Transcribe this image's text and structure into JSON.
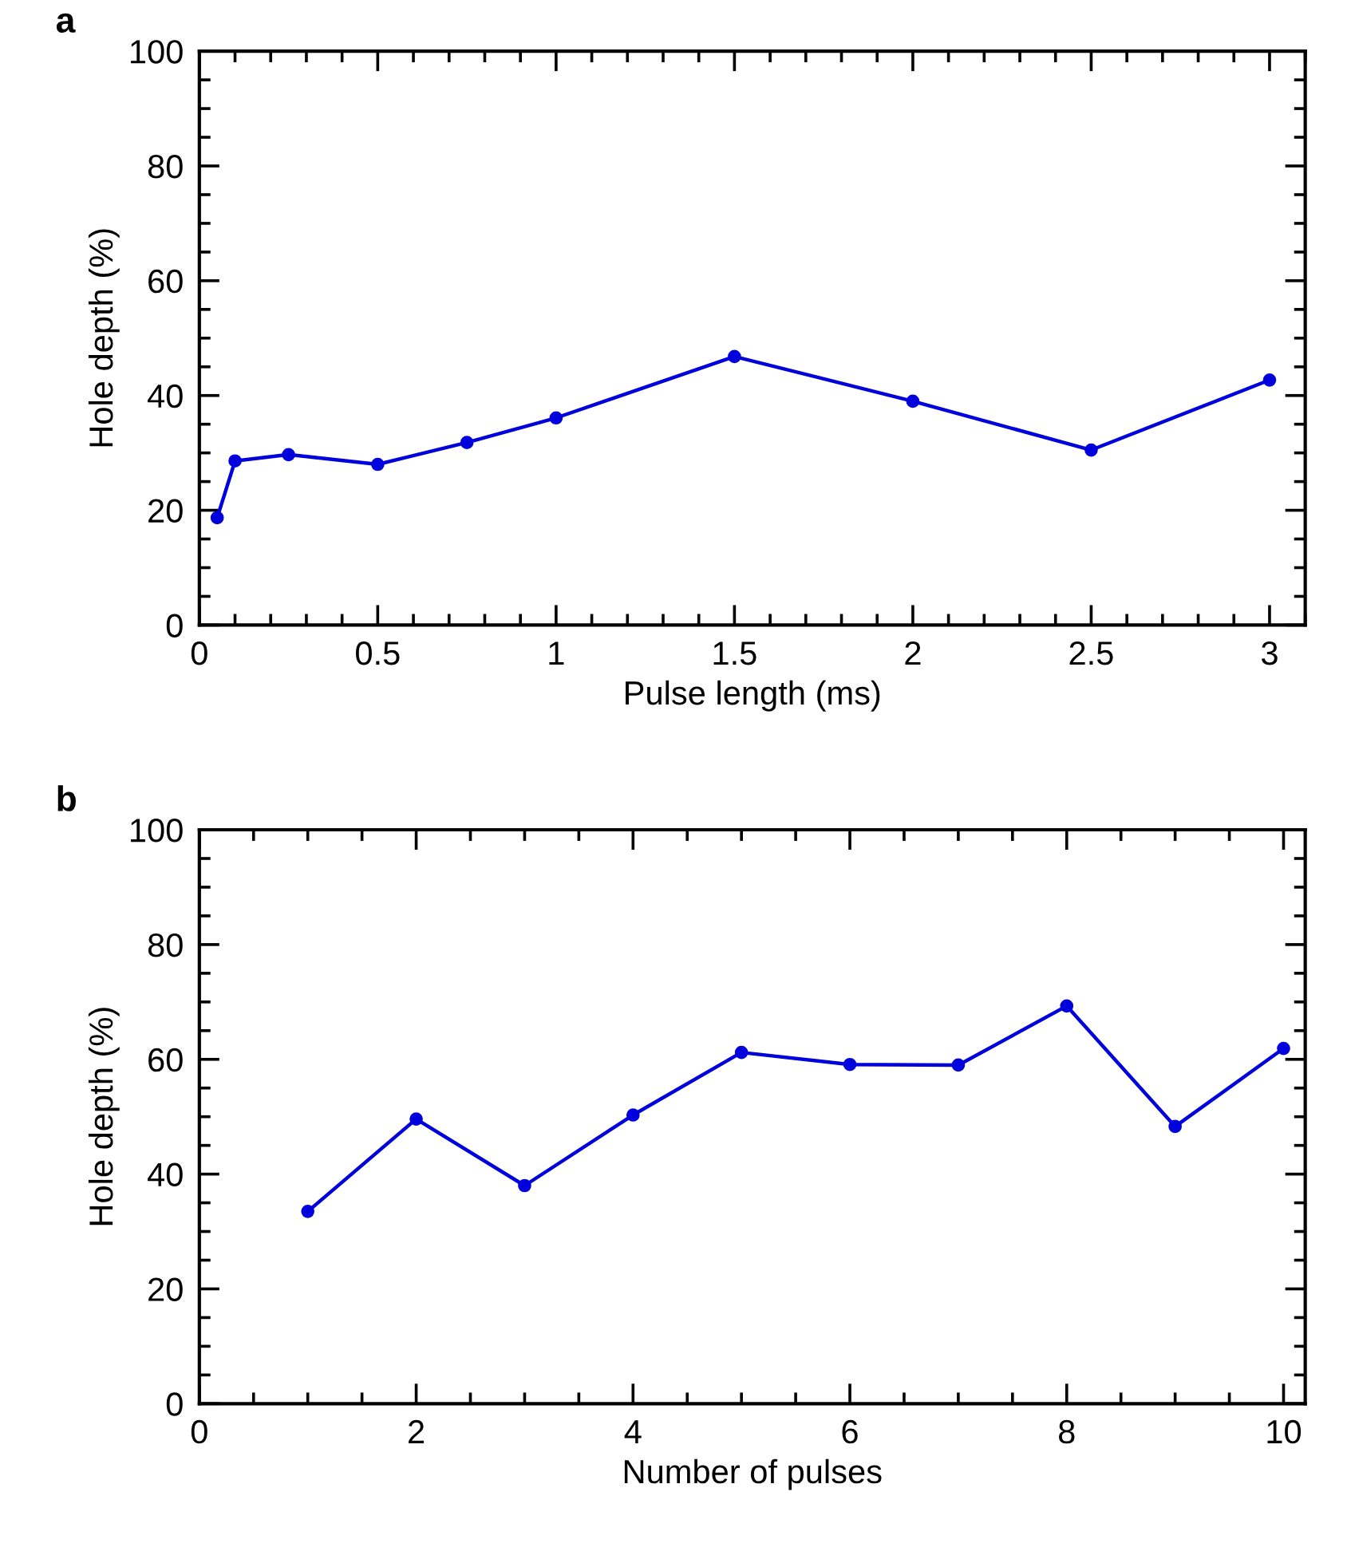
{
  "chart_data": [
    {
      "type": "line",
      "xlabel": "Pulse length (ms)",
      "ylabel": "Hole depth (%)",
      "annotations": [
        "a"
      ],
      "marker": "circle",
      "line_style": "solid",
      "grid": false,
      "xlim": [
        0,
        3.1
      ],
      "xticks": [
        0,
        0.5,
        1,
        1.5,
        2,
        2.5,
        3
      ],
      "ylim": [
        0,
        100
      ],
      "yticks": [
        0,
        20,
        40,
        60,
        80,
        100
      ],
      "series": [
        {
          "color": "#0000dd",
          "x": [
            0.05,
            0.1,
            0.25,
            0.5,
            0.75,
            1,
            1.5,
            2,
            2.5,
            3
          ],
          "values": [
            18.7,
            28.6,
            29.7,
            28.0,
            31.8,
            36.1,
            46.8,
            39.0,
            30.5,
            42.7
          ]
        }
      ]
    },
    {
      "type": "line",
      "xlabel": "Number of pulses",
      "ylabel": "Hole depth (%)",
      "annotations": [
        "b"
      ],
      "marker": "circle",
      "line_style": "solid",
      "grid": false,
      "xlim": [
        0,
        10.2
      ],
      "xticks": [
        0,
        2,
        4,
        6,
        8,
        10
      ],
      "ylim": [
        0,
        100
      ],
      "yticks": [
        0,
        20,
        40,
        60,
        80,
        100
      ],
      "series": [
        {
          "color": "#0000dd",
          "x": [
            1,
            2,
            3,
            4,
            5,
            6,
            7,
            8,
            9,
            10
          ],
          "values": [
            33.5,
            49.6,
            38.0,
            50.3,
            61.2,
            59.1,
            59.0,
            69.3,
            48.3,
            61.9
          ]
        }
      ]
    }
  ]
}
